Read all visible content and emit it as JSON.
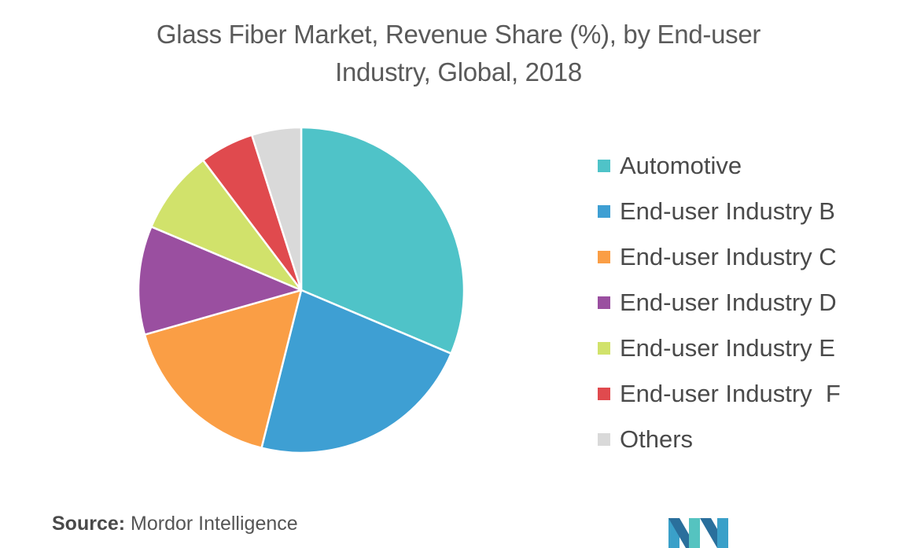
{
  "chart_data": {
    "type": "pie",
    "title": "Glass Fiber Market, Revenue Share (%), by End-user Industry, Global, 2018",
    "title_lines": [
      "Glass Fiber Market, Revenue Share (%), by End-user",
      "Industry, Global, 2018"
    ],
    "legend_position": "right",
    "categories": [
      "Automotive",
      "End-user Industry B",
      "End-user Industry C",
      "End-user Industry D",
      "End-user Industry E",
      "End-user Industry  F",
      "Others"
    ],
    "values": [
      32,
      23,
      17,
      11,
      8.5,
      5.5,
      5
    ],
    "colors": [
      "#4fc3c8",
      "#3e9fd3",
      "#fa9e45",
      "#9a4fa0",
      "#d1e26b",
      "#e04a4e",
      "#d9d9d9"
    ]
  },
  "source": {
    "label": "Source:",
    "value": "Mordor Intelligence"
  },
  "logo": {
    "name": "mordor-intelligence-logo"
  }
}
